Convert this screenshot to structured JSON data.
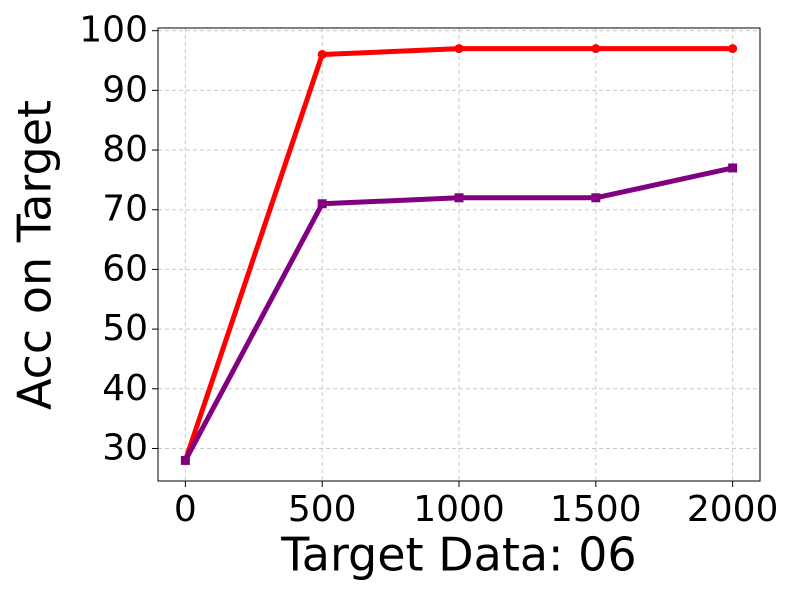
{
  "chart_data": {
    "type": "line",
    "x_label": "Target Data: 06",
    "y_label": "Acc on Target",
    "x": [
      0,
      500,
      1000,
      1500,
      2000
    ],
    "series": [
      {
        "color": "#ff0000",
        "marker": "circle",
        "values": [
          28,
          96,
          97,
          97,
          97
        ]
      },
      {
        "color": "#800080",
        "marker": "square",
        "values": [
          28,
          71,
          72,
          72,
          77
        ]
      }
    ],
    "xlim": [
      -100,
      2100
    ],
    "xticks": [
      0,
      500,
      1000,
      1500,
      2000
    ],
    "ylim": [
      24.55,
      100.45
    ],
    "yticks": [
      30,
      40,
      50,
      60,
      70,
      80,
      90,
      100
    ],
    "grid": true
  }
}
